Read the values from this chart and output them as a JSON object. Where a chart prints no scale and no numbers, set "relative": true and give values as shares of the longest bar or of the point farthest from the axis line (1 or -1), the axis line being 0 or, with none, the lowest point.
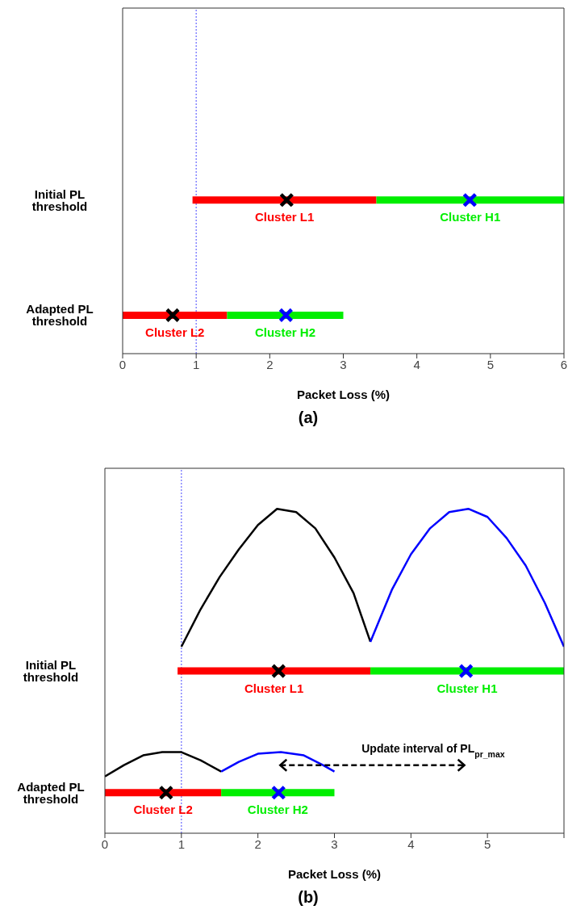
{
  "chart_data": [
    {
      "type": "line",
      "title": "(a)",
      "xlabel": "Packet Loss (%)",
      "xlim": [
        0,
        6
      ],
      "xticks": [
        0,
        1,
        2,
        3,
        4,
        5,
        6
      ],
      "relative": true,
      "annotations": [
        "Initial PL threshold",
        "Adapted PL threshold"
      ],
      "ref_lines": [
        {
          "axis": "x",
          "value": 1,
          "color": "#6666ff",
          "line_style": "dotted"
        }
      ],
      "series": [
        {
          "name": "Cluster L1",
          "color": "#ff0000",
          "x": [
            0.95,
            3.45
          ],
          "values": [
            1,
            1
          ]
        },
        {
          "name": "Cluster H1",
          "color": "#00ee00",
          "x": [
            3.45,
            6
          ],
          "values": [
            1,
            1
          ]
        },
        {
          "name": "Cluster L2",
          "color": "#ff0000",
          "x": [
            0,
            1.42
          ],
          "values": [
            0.25,
            0.25
          ]
        },
        {
          "name": "Cluster H2",
          "color": "#00ee00",
          "x": [
            1.42,
            3
          ],
          "values": [
            0.25,
            0.25
          ]
        },
        {
          "type": "scatter",
          "marker": "cross",
          "color": "#000000",
          "x": [
            2.23,
            0.68
          ],
          "values": [
            1,
            0.25
          ]
        },
        {
          "type": "scatter",
          "marker": "cross",
          "color": "#0000ff",
          "x": [
            4.72,
            2.22
          ],
          "values": [
            1,
            0.25
          ]
        }
      ]
    },
    {
      "type": "line",
      "title": "(b)",
      "xlabel": "Packet Loss (%)",
      "xlim": [
        0,
        6
      ],
      "xticks": [
        0,
        1,
        2,
        3,
        4,
        5,
        {
          "value": 6,
          "label": null
        }
      ],
      "relative": true,
      "annotations": [
        "Initial PL threshold",
        "Adapted PL threshold",
        "Update interval of PL$_{pr_max}$"
      ],
      "ref_lines": [
        {
          "axis": "x",
          "value": 1,
          "color": "#6666ff",
          "line_style": "dotted"
        }
      ],
      "series": [
        {
          "color": "#000000",
          "x": [
            1,
            1.25,
            1.5,
            1.75,
            2,
            2.25,
            2.5,
            2.75,
            3,
            3.25,
            3.47
          ],
          "values": [
            0.575,
            0.69,
            0.79,
            0.875,
            0.95,
            1,
            0.99,
            0.94,
            0.85,
            0.74,
            0.59
          ]
        },
        {
          "color": "#0000ff",
          "x": [
            3.47,
            3.75,
            4,
            4.25,
            4.5,
            4.75,
            5,
            5.25,
            5.5,
            5.75,
            6
          ],
          "values": [
            0.59,
            0.75,
            0.86,
            0.94,
            0.99,
            1,
            0.975,
            0.91,
            0.825,
            0.71,
            0.575
          ]
        },
        {
          "color": "#000000",
          "x": [
            0,
            0.25,
            0.5,
            0.75,
            1,
            1.25,
            1.52
          ],
          "values": [
            0.175,
            0.21,
            0.24,
            0.25,
            0.25,
            0.225,
            0.19
          ]
        },
        {
          "color": "#0000ff",
          "x": [
            1.52,
            1.75,
            2,
            2.3,
            2.6,
            2.85,
            3
          ],
          "values": [
            0.19,
            0.22,
            0.245,
            0.25,
            0.24,
            0.21,
            0.19
          ]
        },
        {
          "name": "Cluster L1",
          "color": "#ff0000",
          "x": [
            0.95,
            3.47
          ],
          "values": [
            0.5,
            0.5
          ]
        },
        {
          "name": "Cluster H1",
          "color": "#00ee00",
          "x": [
            3.47,
            6
          ],
          "values": [
            0.5,
            0.5
          ]
        },
        {
          "name": "Cluster L2",
          "color": "#ff0000",
          "x": [
            0,
            1.52
          ],
          "values": [
            0.125,
            0.125
          ]
        },
        {
          "name": "Cluster H2",
          "color": "#00ee00",
          "x": [
            1.52,
            3
          ],
          "values": [
            0.125,
            0.125
          ]
        },
        {
          "type": "scatter",
          "marker": "cross",
          "color": "#000000",
          "x": [
            2.27,
            0.8
          ],
          "values": [
            0.5,
            0.125
          ]
        },
        {
          "type": "scatter",
          "marker": "cross",
          "color": "#0000ff",
          "x": [
            4.72,
            2.27
          ],
          "values": [
            0.5,
            0.125
          ]
        }
      ]
    }
  ]
}
